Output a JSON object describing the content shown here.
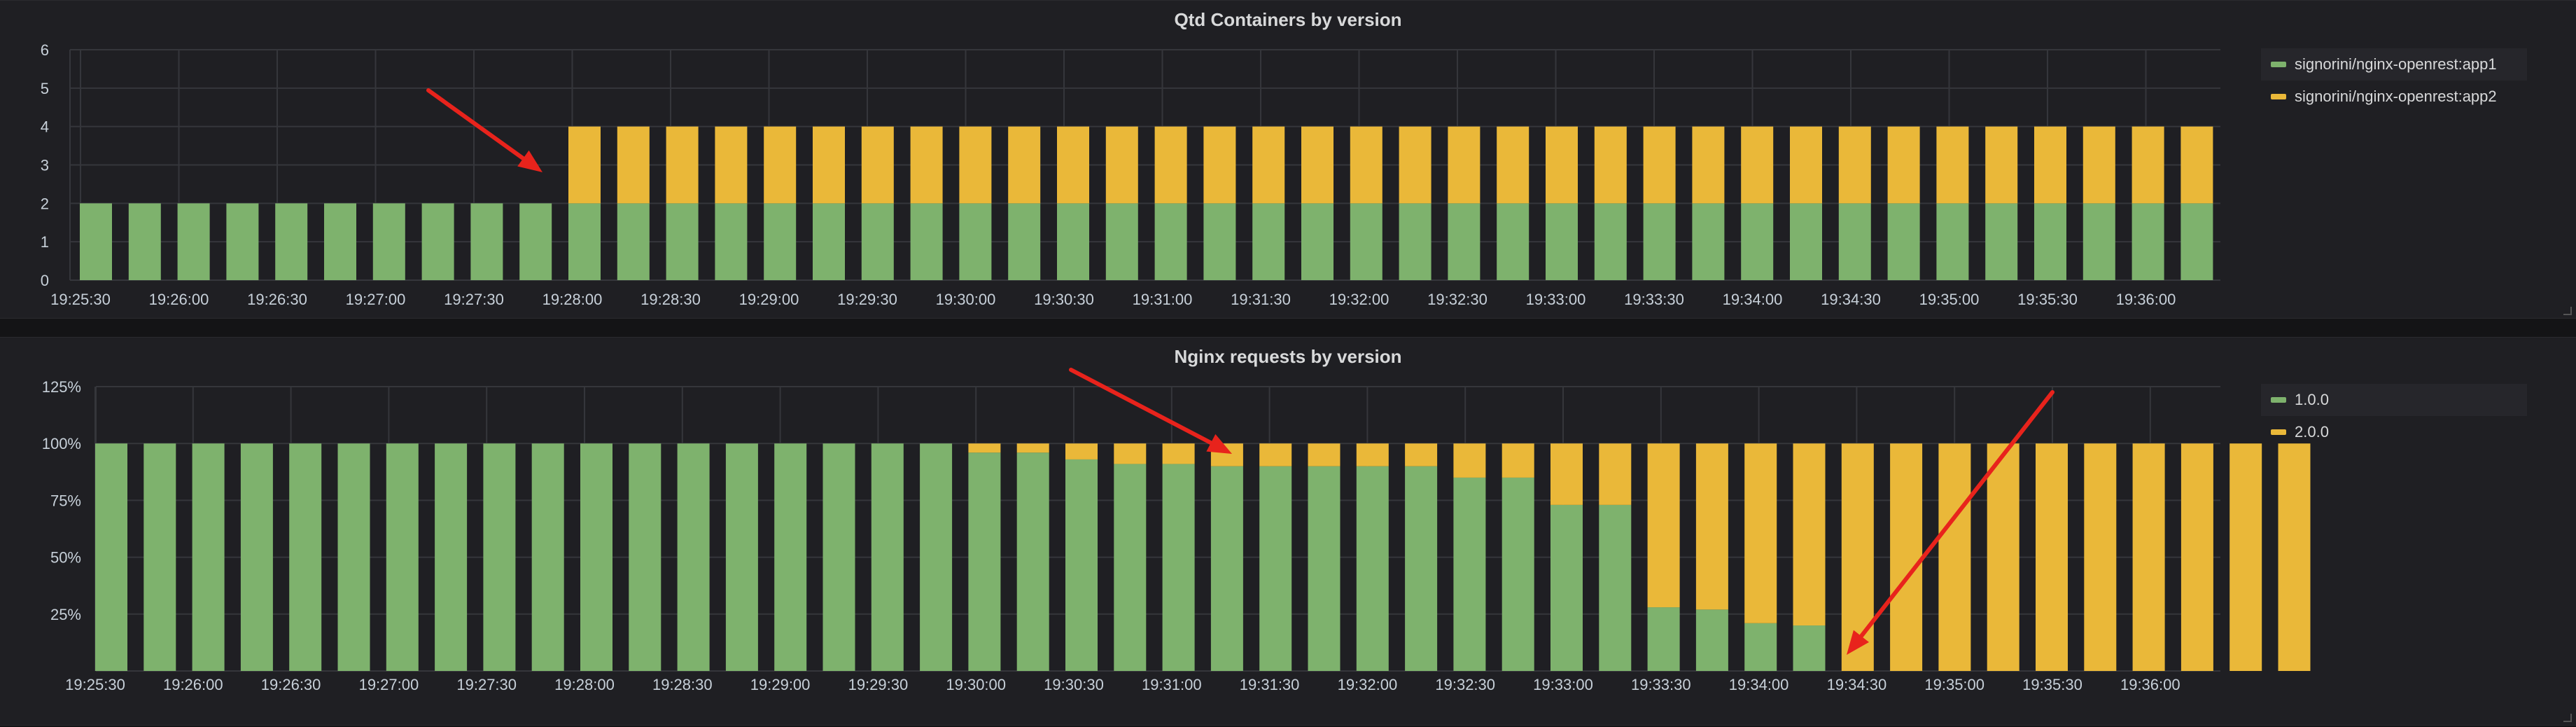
{
  "chart_data": [
    {
      "type": "bar",
      "stacked": true,
      "title": "Qtd Containers by version",
      "ylim": [
        0,
        6
      ],
      "yticks": [
        "0",
        "1",
        "2",
        "3",
        "4",
        "5",
        "6"
      ],
      "xtick_labels": [
        "19:25:30",
        "19:26:00",
        "19:26:30",
        "19:27:00",
        "19:27:30",
        "19:28:00",
        "19:28:30",
        "19:29:00",
        "19:29:30",
        "19:30:00",
        "19:30:30",
        "19:31:00",
        "19:31:30",
        "19:32:00",
        "19:32:30",
        "19:33:00",
        "19:33:30",
        "19:34:00",
        "19:34:30",
        "19:35:00",
        "19:35:30",
        "19:36:00"
      ],
      "legend_position": "right",
      "series": [
        {
          "name": "signorini/nginx-openrest:app1",
          "color": "#7eb26d",
          "values": [
            2,
            2,
            2,
            2,
            2,
            2,
            2,
            2,
            2,
            2,
            2,
            2,
            2,
            2,
            2,
            2,
            2,
            2,
            2,
            2,
            2,
            2,
            2,
            2,
            2,
            2,
            2,
            2,
            2,
            2,
            2,
            2,
            2,
            2,
            2,
            2,
            2,
            2,
            2,
            2,
            2,
            2,
            2,
            2
          ]
        },
        {
          "name": "signorini/nginx-openrest:app2",
          "color": "#eab839",
          "values": [
            0,
            0,
            0,
            0,
            0,
            0,
            0,
            0,
            0,
            0,
            2,
            2,
            2,
            2,
            2,
            2,
            2,
            2,
            2,
            2,
            2,
            2,
            2,
            2,
            2,
            2,
            2,
            2,
            2,
            2,
            2,
            2,
            2,
            2,
            2,
            2,
            2,
            2,
            2,
            2,
            2,
            2,
            2,
            2
          ]
        }
      ]
    },
    {
      "type": "bar",
      "stacked": true,
      "title": "Nginx requests by version",
      "ylim": [
        0,
        125
      ],
      "yticks": [
        "25%",
        "50%",
        "75%",
        "100%",
        "125%"
      ],
      "ytick_values": [
        25,
        50,
        75,
        100,
        125
      ],
      "xtick_labels": [
        "19:25:30",
        "19:26:00",
        "19:26:30",
        "19:27:00",
        "19:27:30",
        "19:28:00",
        "19:28:30",
        "19:29:00",
        "19:29:30",
        "19:30:00",
        "19:30:30",
        "19:31:00",
        "19:31:30",
        "19:32:00",
        "19:32:30",
        "19:33:00",
        "19:33:30",
        "19:34:00",
        "19:34:30",
        "19:35:00",
        "19:35:30",
        "19:36:00"
      ],
      "legend_position": "right",
      "series": [
        {
          "name": "1.0.0",
          "color": "#7eb26d",
          "values": [
            100,
            100,
            100,
            100,
            100,
            100,
            100,
            100,
            100,
            100,
            100,
            100,
            100,
            100,
            100,
            100,
            100,
            100,
            96,
            96,
            93,
            91,
            91,
            90,
            90,
            90,
            90,
            90,
            85,
            85,
            73,
            73,
            28,
            27,
            21,
            20,
            0,
            0,
            0,
            0,
            0,
            0,
            0,
            0,
            0,
            0
          ]
        },
        {
          "name": "2.0.0",
          "color": "#eab839",
          "values": [
            0,
            0,
            0,
            0,
            0,
            0,
            0,
            0,
            0,
            0,
            0,
            0,
            0,
            0,
            0,
            0,
            0,
            0,
            4,
            4,
            7,
            9,
            9,
            10,
            10,
            10,
            10,
            10,
            15,
            15,
            27,
            27,
            72,
            73,
            79,
            80,
            100,
            100,
            100,
            100,
            100,
            100,
            100,
            100,
            100,
            100
          ]
        }
      ]
    }
  ]
}
